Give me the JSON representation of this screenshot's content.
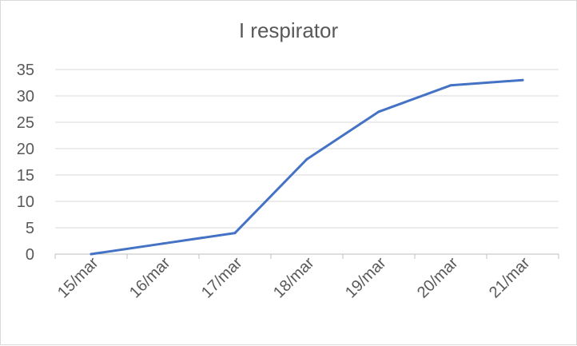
{
  "chart_data": {
    "type": "line",
    "title": "I respirator",
    "categories": [
      "15/mar",
      "16/mar",
      "17/mar",
      "18/mar",
      "19/mar",
      "20/mar",
      "21/mar"
    ],
    "series": [
      {
        "values": [
          0,
          2,
          4,
          18,
          27,
          32,
          33
        ],
        "color": "#4472c4"
      }
    ],
    "ylim": [
      0,
      35
    ],
    "yticks": [
      0,
      5,
      10,
      15,
      20,
      25,
      30,
      35
    ],
    "grid": true,
    "legend": "none"
  }
}
